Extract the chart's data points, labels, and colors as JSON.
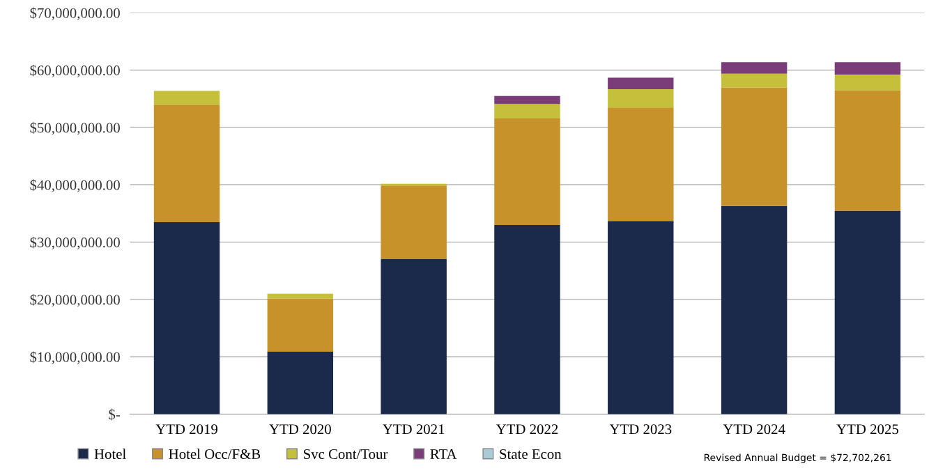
{
  "chart_data": {
    "type": "bar",
    "stacked": true,
    "categories": [
      "YTD 2019",
      "YTD 2020",
      "YTD 2021",
      "YTD 2022",
      "YTD 2023",
      "YTD 2024",
      "YTD 2025"
    ],
    "series": [
      {
        "name": "Hotel",
        "color": "#1b2a4a",
        "values": [
          33500000,
          10900000,
          27100000,
          33000000,
          33700000,
          36300000,
          35500000
        ]
      },
      {
        "name": "Hotel Occ/F&B",
        "color": "#c8922a",
        "values": [
          20500000,
          9300000,
          12800000,
          18600000,
          19800000,
          20700000,
          21000000
        ]
      },
      {
        "name": "Svc Cont/Tour",
        "color": "#c4c03a",
        "values": [
          2400000,
          800000,
          300000,
          2500000,
          3200000,
          2400000,
          2700000
        ]
      },
      {
        "name": "RTA",
        "color": "#7a3d7a",
        "values": [
          null,
          null,
          null,
          1400000,
          2000000,
          2000000,
          2200000
        ]
      },
      {
        "name": "State Econ",
        "color": "#a9cbd8",
        "values": [
          null,
          null,
          null,
          null,
          null,
          null,
          null
        ]
      }
    ],
    "ylim": [
      0,
      70000000
    ],
    "yticks": [
      {
        "value": 0,
        "label": "$-"
      },
      {
        "value": 10000000,
        "label": "$10,000,000.00"
      },
      {
        "value": 20000000,
        "label": "$20,000,000.00"
      },
      {
        "value": 30000000,
        "label": "$30,000,000.00"
      },
      {
        "value": 40000000,
        "label": "$40,000,000.00"
      },
      {
        "value": 50000000,
        "label": "$50,000,000.00"
      },
      {
        "value": 60000000,
        "label": "$60,000,000.00"
      },
      {
        "value": 70000000,
        "label": "$70,000,000.00"
      }
    ],
    "grid": "y",
    "legend": "bottom",
    "annotations": [
      "Revised Annual Budget = $72,702,261"
    ]
  }
}
